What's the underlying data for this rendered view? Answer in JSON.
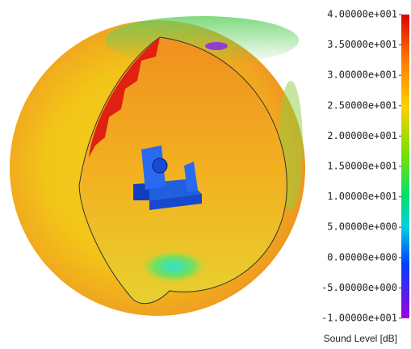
{
  "legend": {
    "title": "Sound Level [dB]",
    "lim": [
      -10,
      40
    ],
    "ticks": [
      {
        "value": 40,
        "label": "4.00000e+001"
      },
      {
        "value": 35,
        "label": "3.50000e+001"
      },
      {
        "value": 30,
        "label": "3.00000e+001"
      },
      {
        "value": 25,
        "label": "2.50000e+001"
      },
      {
        "value": 20,
        "label": "2.00000e+001"
      },
      {
        "value": 15,
        "label": "1.50000e+001"
      },
      {
        "value": 10,
        "label": "1.00000e+001"
      },
      {
        "value": 5,
        "label": "5.00000e+000"
      },
      {
        "value": 0,
        "label": "0.00000e+000"
      },
      {
        "value": -5,
        "label": "-5.00000e+000"
      },
      {
        "value": -10,
        "label": "-1.00000e+001"
      }
    ]
  }
}
